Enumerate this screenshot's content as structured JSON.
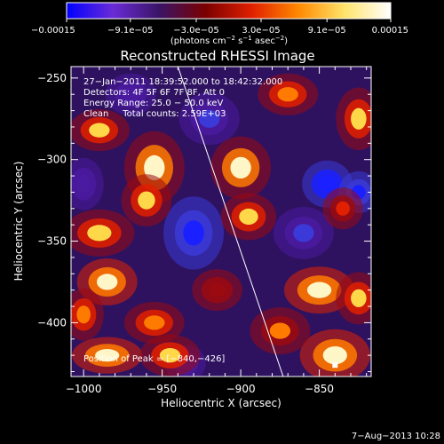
{
  "chart_data": {
    "type": "heatmap",
    "title": "Reconstructed RHESSI Image",
    "xlabel": "Heliocentric X (arcsec)",
    "ylabel": "Heliocentric Y (arcsec)",
    "xlim": [
      -1008,
      -817
    ],
    "ylim": [
      -433,
      -243
    ],
    "xticks": [
      -1000,
      -950,
      -900,
      -850
    ],
    "xtick_labels": [
      "−1000",
      "−950",
      "−900",
      "−850"
    ],
    "yticks": [
      -400,
      -350,
      -300,
      -250
    ],
    "ytick_labels": [
      "−400",
      "−350",
      "−300",
      "−250"
    ],
    "colorbar": {
      "range": [
        -0.00015,
        0.00015
      ],
      "ticks": [
        -0.00015,
        -9.1e-05,
        -3e-05,
        3e-05,
        9.1e-05,
        0.00015
      ],
      "tick_labels": [
        "−0.00015",
        "−9.1e−05",
        "−3.0e−05",
        "3.0e−05",
        "9.1e−05",
        "0.00015"
      ],
      "units_text": "(photons cm",
      "units_exp1": "−2",
      "units_mid": " s",
      "units_exp2": "−1",
      "units_mid2": " asec",
      "units_exp3": "−2",
      "units_end": ")",
      "colors": [
        "#0000ff",
        "#6a2bd6",
        "#3a1466",
        "#7a0000",
        "#e02000",
        "#ff8800",
        "#ffe46a",
        "#ffffff"
      ]
    },
    "annotations": {
      "time_range": "27−Jan−2011 18:39:52.000 to 18:42:32.000",
      "detectors": "Detectors: 4F 5F 6F 7F 8F, Att 0",
      "energy": "Energy Range: 25.0 − 50.0 keV",
      "clean": "Clean     Total counts: 2.59E+03",
      "peak": "Position of Peak = [−840,−426]"
    },
    "peak": {
      "x": -840,
      "y": -426
    },
    "limb_line": [
      [
        -940,
        -243
      ],
      [
        -873,
        -433
      ]
    ],
    "sources": [
      {
        "x": -990,
        "y": -282,
        "v": 0.9,
        "sx": 12,
        "sy": 8
      },
      {
        "x": -955,
        "y": -305,
        "v": 0.95,
        "sx": 12,
        "sy": 14
      },
      {
        "x": -960,
        "y": -325,
        "v": 0.85,
        "sx": 10,
        "sy": 10
      },
      {
        "x": -990,
        "y": -345,
        "v": 0.85,
        "sx": 14,
        "sy": 9
      },
      {
        "x": -985,
        "y": -375,
        "v": 1.0,
        "sx": 12,
        "sy": 9
      },
      {
        "x": -1000,
        "y": -395,
        "v": 0.75,
        "sx": 8,
        "sy": 10
      },
      {
        "x": -955,
        "y": -400,
        "v": 0.8,
        "sx": 12,
        "sy": 8
      },
      {
        "x": -985,
        "y": -420,
        "v": 1.0,
        "sx": 14,
        "sy": 7
      },
      {
        "x": -945,
        "y": -420,
        "v": 0.85,
        "sx": 12,
        "sy": 8
      },
      {
        "x": -900,
        "y": -305,
        "v": 0.95,
        "sx": 12,
        "sy": 12
      },
      {
        "x": -895,
        "y": -335,
        "v": 0.85,
        "sx": 11,
        "sy": 9
      },
      {
        "x": -870,
        "y": -260,
        "v": 0.75,
        "sx": 12,
        "sy": 8
      },
      {
        "x": -825,
        "y": -275,
        "v": 0.9,
        "sx": 9,
        "sy": 12
      },
      {
        "x": -835,
        "y": -330,
        "v": 0.55,
        "sx": 8,
        "sy": 8
      },
      {
        "x": -850,
        "y": -380,
        "v": 1.0,
        "sx": 14,
        "sy": 9
      },
      {
        "x": -825,
        "y": -385,
        "v": 0.85,
        "sx": 9,
        "sy": 10
      },
      {
        "x": -840,
        "y": -420,
        "v": 1.0,
        "sx": 14,
        "sy": 10
      },
      {
        "x": -875,
        "y": -405,
        "v": 0.7,
        "sx": 12,
        "sy": 9
      },
      {
        "x": -915,
        "y": -380,
        "v": 0.5,
        "sx": 10,
        "sy": 8
      }
    ],
    "sinks": [
      {
        "x": -930,
        "y": -345,
        "v": -0.85,
        "sx": 12,
        "sy": 14
      },
      {
        "x": -920,
        "y": -275,
        "v": -0.5,
        "sx": 12,
        "sy": 10
      },
      {
        "x": -845,
        "y": -315,
        "v": -1.0,
        "sx": 10,
        "sy": 9
      },
      {
        "x": -825,
        "y": -320,
        "v": -0.9,
        "sx": 8,
        "sy": 8
      },
      {
        "x": -970,
        "y": -260,
        "v": -0.35,
        "sx": 10,
        "sy": 8
      },
      {
        "x": -1000,
        "y": -315,
        "v": -0.45,
        "sx": 8,
        "sy": 10
      },
      {
        "x": -860,
        "y": -345,
        "v": -0.55,
        "sx": 12,
        "sy": 10
      },
      {
        "x": -935,
        "y": -425,
        "v": -0.4,
        "sx": 8,
        "sy": 7
      }
    ],
    "corner_label": "7−Aug−2013 10:28"
  }
}
